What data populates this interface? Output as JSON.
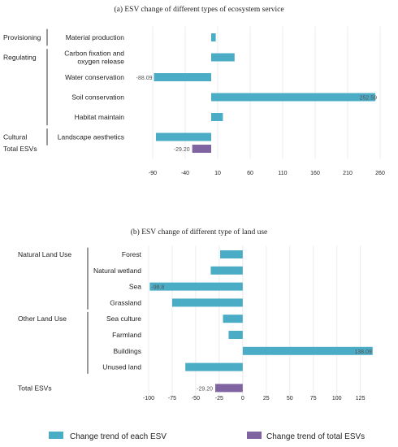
{
  "colors": {
    "each": "#4bacc6",
    "total": "#8064a2"
  },
  "legend": {
    "each_label": "Change trend of each ESV",
    "total_label": "Change trend of total ESVs"
  },
  "chart_data": [
    {
      "type": "bar",
      "orientation": "horizontal",
      "title": "(a) ESV change of different types of ecosystem service",
      "xlim": [
        -90,
        260
      ],
      "xticks": [
        -90,
        -40,
        10,
        60,
        110,
        160,
        210,
        260
      ],
      "groups": [
        {
          "name": "Provisioning",
          "rows": [
            0
          ]
        },
        {
          "name": "Regulating",
          "rows": [
            1,
            2,
            3,
            4
          ]
        },
        {
          "name": "Cultural",
          "rows": [
            5
          ]
        }
      ],
      "categories": [
        {
          "label": "Material production",
          "value": 7
        },
        {
          "label": "Carbon fixation and oxygen release",
          "lines": [
            "Carbon fixation and",
            "oxygen release"
          ],
          "value": 36
        },
        {
          "label": "Water conservation",
          "value": -88.09,
          "data_label": "-88.09",
          "label_side": "left"
        },
        {
          "label": "Soil conservation",
          "value": 252.59,
          "data_label": "252.59",
          "label_side": "right"
        },
        {
          "label": "Habitat maintain",
          "value": 18
        },
        {
          "label": "Landscape aesthetics",
          "value": -85
        }
      ],
      "total": {
        "label": "Total ESVs",
        "value": -29.2,
        "data_label": "-29.20"
      }
    },
    {
      "type": "bar",
      "orientation": "horizontal",
      "title": "(b) ESV change of different type of land use",
      "xlim": [
        -100,
        140
      ],
      "xticks": [
        -100,
        -75,
        -50,
        -25,
        0,
        25,
        50,
        75,
        100,
        125
      ],
      "groups": [
        {
          "name": "Natural Land Use",
          "rows": [
            0,
            1,
            2,
            3
          ]
        },
        {
          "name": "Other Land Use",
          "rows": [
            4,
            5,
            6,
            7
          ]
        }
      ],
      "categories": [
        {
          "label": "Forest",
          "value": -24
        },
        {
          "label": "Natural wetland",
          "value": -34
        },
        {
          "label": "Sea",
          "value": -98.8,
          "data_label": "-98.8",
          "label_side": "inside-left"
        },
        {
          "label": "Grassland",
          "value": -75
        },
        {
          "label": "Sea culture",
          "value": -21
        },
        {
          "label": "Farmland",
          "value": -15
        },
        {
          "label": "Buildings",
          "value": 138.09,
          "data_label": "138.09",
          "label_side": "inside-right"
        },
        {
          "label": "Unused land",
          "value": -61
        }
      ],
      "total": {
        "label": "Total ESVs",
        "value": -29.2,
        "data_label": "-29.20"
      }
    }
  ]
}
